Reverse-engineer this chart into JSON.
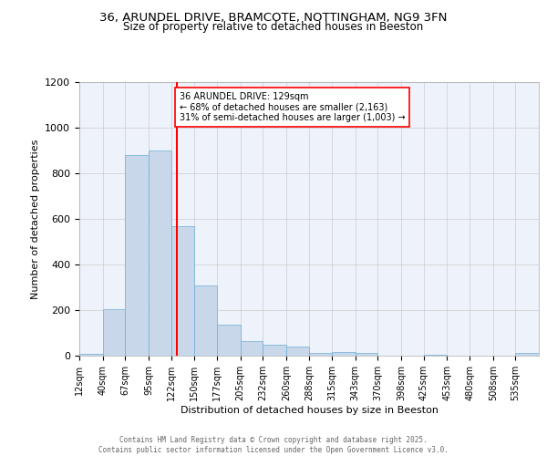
{
  "title_line1": "36, ARUNDEL DRIVE, BRAMCOTE, NOTTINGHAM, NG9 3FN",
  "title_line2": "Size of property relative to detached houses in Beeston",
  "xlabel": "Distribution of detached houses by size in Beeston",
  "ylabel": "Number of detached properties",
  "bar_color": "#c8d8ea",
  "bar_edge_color": "#6aaed6",
  "grid_color": "#cccccc",
  "bg_color": "#eef2fa",
  "vline_x": 129,
  "vline_color": "red",
  "annotation_text": "36 ARUNDEL DRIVE: 129sqm\n← 68% of detached houses are smaller (2,163)\n31% of semi-detached houses are larger (1,003) →",
  "annotation_box_color": "#ffffff",
  "annotation_border_color": "red",
  "footer_line1": "Contains HM Land Registry data © Crown copyright and database right 2025.",
  "footer_line2": "Contains public sector information licensed under the Open Government Licence v3.0.",
  "bins": [
    12,
    40,
    67,
    95,
    122,
    150,
    177,
    205,
    232,
    260,
    288,
    315,
    343,
    370,
    398,
    425,
    453,
    480,
    508,
    535,
    563
  ],
  "counts": [
    10,
    205,
    880,
    900,
    570,
    310,
    135,
    65,
    50,
    42,
    12,
    18,
    14,
    0,
    0,
    5,
    0,
    0,
    0,
    12
  ],
  "ylim": [
    0,
    1200
  ],
  "yticks": [
    0,
    200,
    400,
    600,
    800,
    1000,
    1200
  ]
}
